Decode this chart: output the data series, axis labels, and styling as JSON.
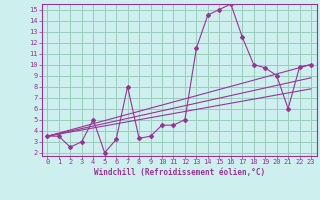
{
  "xlabel": "Windchill (Refroidissement éolien,°C)",
  "bg_color": "#cdf0ee",
  "grid_color": "#99ccbb",
  "line_color": "#993399",
  "spine_color": "#993399",
  "xlim": [
    -0.5,
    23.5
  ],
  "ylim": [
    1.7,
    15.5
  ],
  "xticks": [
    0,
    1,
    2,
    3,
    4,
    5,
    6,
    7,
    8,
    9,
    10,
    11,
    12,
    13,
    14,
    15,
    16,
    17,
    18,
    19,
    20,
    21,
    22,
    23
  ],
  "yticks": [
    2,
    3,
    4,
    5,
    6,
    7,
    8,
    9,
    10,
    11,
    12,
    13,
    14,
    15
  ],
  "series1_x": [
    0,
    1,
    2,
    3,
    4,
    5,
    6,
    7,
    8,
    9,
    10,
    11,
    12,
    13,
    14,
    15,
    16,
    17,
    18,
    19,
    20,
    21,
    22,
    23
  ],
  "series1_y": [
    3.5,
    3.5,
    2.5,
    3.0,
    5.0,
    2.0,
    3.2,
    8.0,
    3.3,
    3.5,
    4.5,
    4.5,
    5.0,
    11.5,
    14.5,
    15.0,
    15.5,
    12.5,
    10.0,
    9.7,
    9.0,
    6.0,
    9.8,
    10.0
  ],
  "series2_x": [
    0,
    23
  ],
  "series2_y": [
    3.5,
    10.0
  ],
  "series3_x": [
    0,
    23
  ],
  "series3_y": [
    3.5,
    8.8
  ],
  "series4_x": [
    0,
    23
  ],
  "series4_y": [
    3.5,
    7.8
  ],
  "tick_fontsize": 5.0,
  "xlabel_fontsize": 5.5
}
